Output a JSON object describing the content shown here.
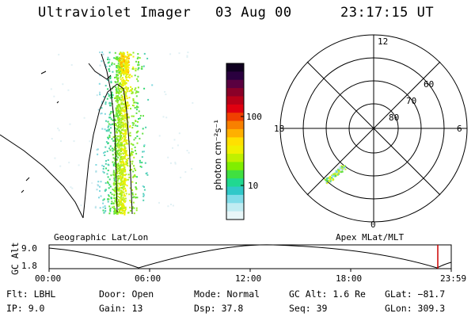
{
  "header": {
    "title": "Ultraviolet Imager",
    "date": "03 Aug 00",
    "time": "23:17:15 UT"
  },
  "left_panel": {
    "caption": "Geographic Lat/Lon"
  },
  "right_panel": {
    "caption": "Apex MLat/MLT",
    "mlt_labels": {
      "top": "12",
      "left": "18",
      "right": "6",
      "bottom": "0"
    },
    "lat_labels": [
      "60",
      "70",
      "80"
    ]
  },
  "colorbar": {
    "unit_label": "photon cm⁻²s⁻¹",
    "ticks": [
      "100",
      "10"
    ],
    "colors": [
      "#100020",
      "#2a003f",
      "#5a0040",
      "#8a0028",
      "#b80018",
      "#e00010",
      "#f04000",
      "#f88000",
      "#ffb000",
      "#ffe000",
      "#f0f000",
      "#c0f000",
      "#80ee00",
      "#40e040",
      "#20d890",
      "#30c8c8",
      "#80dce8",
      "#c0ecf2",
      "#e8f6f8"
    ]
  },
  "altitude_plot": {
    "label": "GC Alt",
    "y_ticks": [
      "9.0",
      "1.8"
    ],
    "x_ticks": [
      "00:00",
      "06:00",
      "12:00",
      "18:00",
      "23:59"
    ],
    "marker_color": "#cc0000"
  },
  "info": {
    "flt": "Flt: LBHL",
    "ip": "IP:  9.0",
    "door": "Door: Open",
    "gain": "Gain: 13",
    "mode": "Mode: Normal",
    "dsp": "Dsp:   37.8",
    "gcalt": "GC Alt: 1.6 Re",
    "seq": "Seq: 39",
    "glat": "GLat: −81.7",
    "glon": "GLon: 309.3"
  }
}
